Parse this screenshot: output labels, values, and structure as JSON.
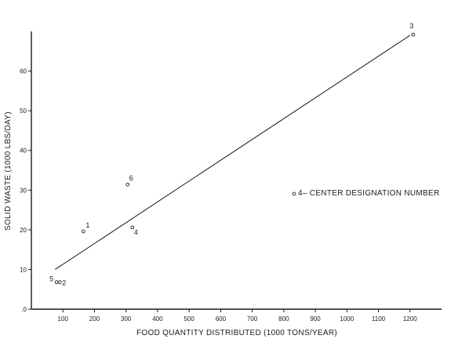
{
  "chart_data": {
    "type": "scatter",
    "title": "",
    "xlabel": "FOOD QUANTITY DISTRIBUTED (1000 TONS/YEAR)",
    "ylabel": "SOLID WASTE (1000 LBS/DAY)",
    "xlim": [
      0,
      1300
    ],
    "ylim": [
      0,
      70
    ],
    "x_ticks": [
      100,
      200,
      300,
      400,
      500,
      600,
      700,
      800,
      900,
      1000,
      1100,
      1200
    ],
    "y_ticks": [
      0,
      10,
      20,
      30,
      40,
      50,
      60
    ],
    "y_tick_labels": [
      ".0",
      "10",
      "20",
      "30",
      "40",
      "50",
      "60"
    ],
    "grid": false,
    "points": [
      {
        "label": "1",
        "x": 165,
        "y": 19.6
      },
      {
        "label": "2",
        "x": 90,
        "y": 6.8
      },
      {
        "label": "3",
        "x": 1210,
        "y": 69.2
      },
      {
        "label": "4",
        "x": 320,
        "y": 20.6
      },
      {
        "label": "5",
        "x": 80,
        "y": 6.8
      },
      {
        "label": "6",
        "x": 305,
        "y": 31.4
      }
    ],
    "fit_line": {
      "x": [
        75,
        1200
      ],
      "y": [
        10,
        69
      ]
    },
    "legend": {
      "text": "4– CENTER DESIGNATION NUMBER",
      "placement": "center-right"
    }
  }
}
